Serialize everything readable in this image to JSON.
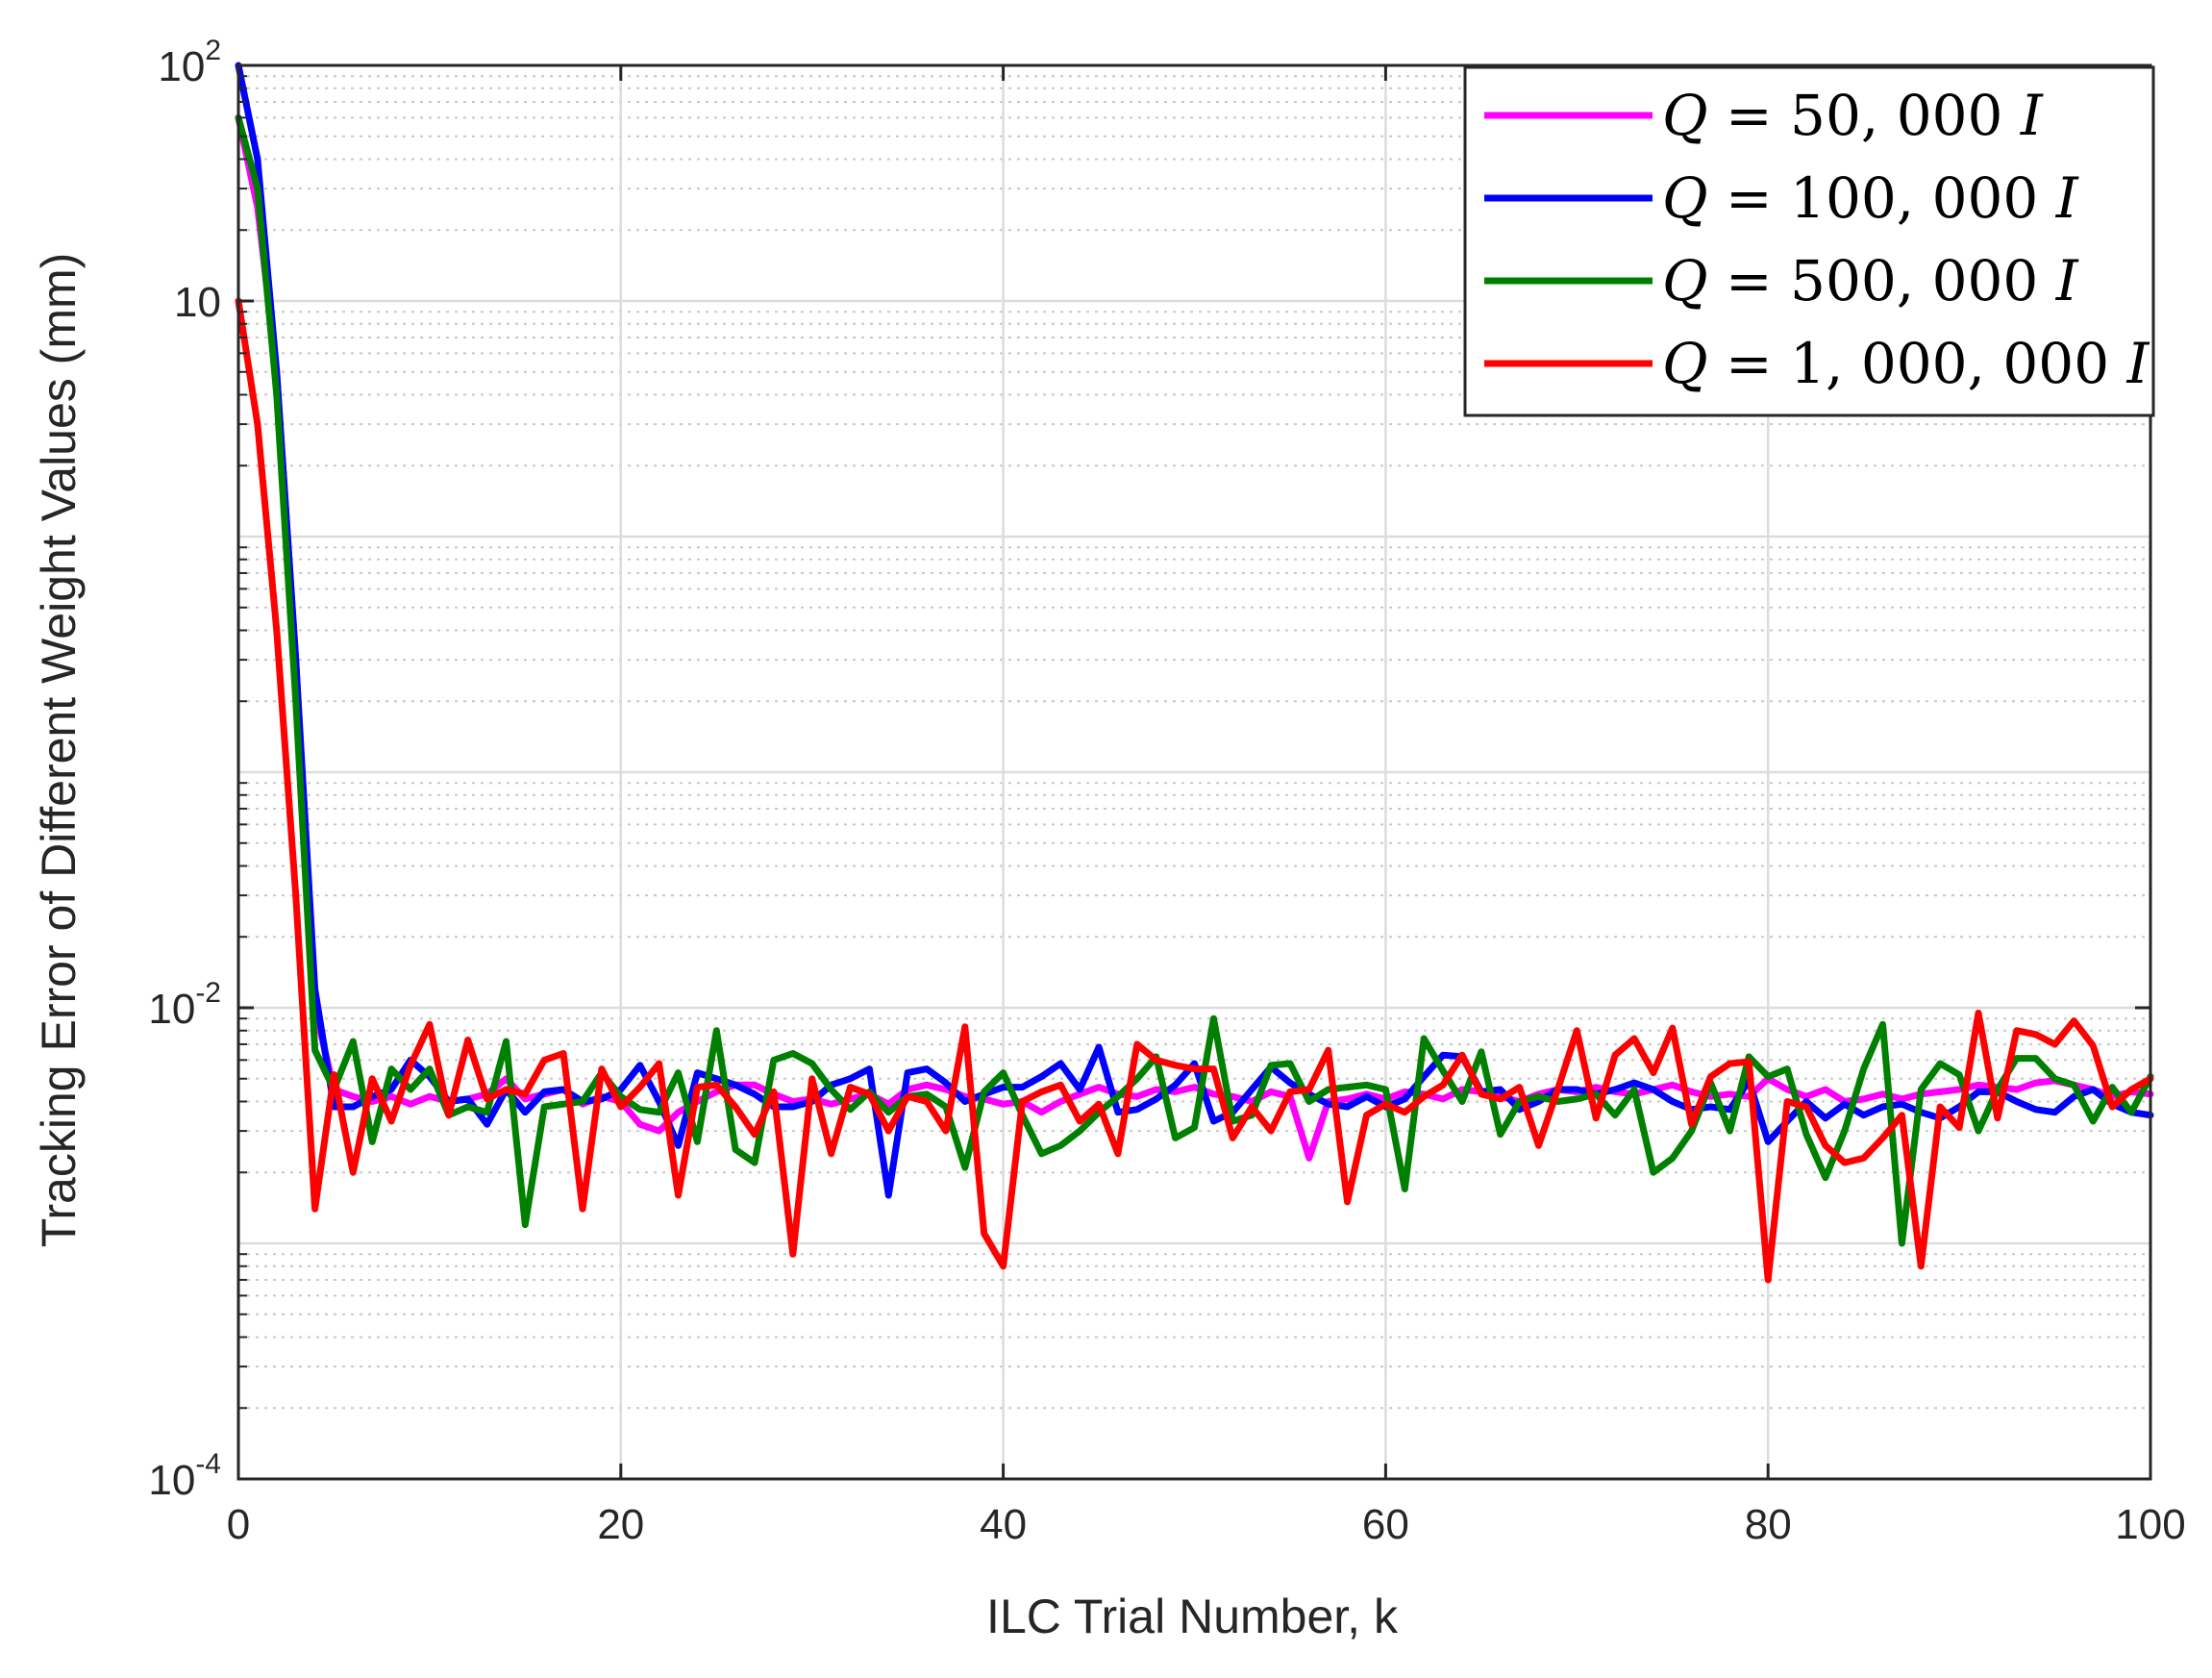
{
  "chart_data": {
    "type": "line",
    "title": "",
    "xlabel": "ILC Trial Number, k",
    "ylabel": "Tracking Error of Different Weight Values (mm)",
    "xlim": [
      0,
      100
    ],
    "ylim": [
      0.0001,
      100
    ],
    "yscale": "log",
    "grid": true,
    "minor_grid": true,
    "legend_position": "top-right",
    "x_ticks": [
      0,
      20,
      40,
      60,
      80,
      100
    ],
    "x_tick_labels": [
      "0",
      "20",
      "40",
      "60",
      "80",
      "100"
    ],
    "y_ticks": [
      0.0001,
      0.01,
      10,
      100
    ],
    "y_tick_labels": [
      {
        "base": "10",
        "exp": "-4"
      },
      {
        "base": "10",
        "exp": "-2"
      },
      {
        "base": "10",
        "exp": ""
      },
      {
        "base": "10",
        "exp": "2"
      }
    ],
    "series": [
      {
        "name": "Q = 50, 000 I",
        "name_parts": {
          "var": "Q",
          "eq": " = ",
          "num": "50, 000 ",
          "mat": "I"
        },
        "color": "#ff00ff",
        "x": [
          0,
          1,
          2,
          3,
          4,
          5,
          6,
          7,
          8,
          9,
          10,
          11,
          12,
          13,
          14,
          15,
          16,
          17,
          18,
          19,
          20,
          21,
          22,
          23,
          24,
          25,
          26,
          27,
          28,
          29,
          30,
          31,
          32,
          33,
          34,
          35,
          36,
          37,
          38,
          39,
          40,
          41,
          42,
          43,
          44,
          45,
          46,
          47,
          48,
          49,
          50,
          51,
          52,
          53,
          54,
          55,
          56,
          57,
          58,
          59,
          60,
          61,
          62,
          63,
          64,
          65,
          66,
          67,
          68,
          69,
          70,
          71,
          72,
          73,
          74,
          75,
          76,
          77,
          78,
          79,
          80,
          81,
          82,
          83,
          84,
          85,
          86,
          87,
          88,
          89,
          90,
          91,
          92,
          93,
          94,
          95,
          96,
          97,
          98,
          99,
          100
        ],
        "y": [
          60,
          25,
          5,
          0.3,
          0.01,
          0.0045,
          0.0042,
          0.004,
          0.0042,
          0.0039,
          0.0042,
          0.004,
          0.0041,
          0.0043,
          0.005,
          0.0041,
          0.0043,
          0.0045,
          0.0039,
          0.0042,
          0.004,
          0.0032,
          0.003,
          0.0036,
          0.004,
          0.0044,
          0.0047,
          0.0047,
          0.0043,
          0.004,
          0.0041,
          0.0039,
          0.0041,
          0.0043,
          0.0039,
          0.0045,
          0.0047,
          0.0045,
          0.0042,
          0.0041,
          0.0039,
          0.004,
          0.0036,
          0.004,
          0.0043,
          0.0046,
          0.0043,
          0.0042,
          0.0045,
          0.0044,
          0.0046,
          0.0043,
          0.0042,
          0.004,
          0.0044,
          0.0042,
          0.0023,
          0.004,
          0.0041,
          0.0043,
          0.0041,
          0.0044,
          0.0043,
          0.0041,
          0.0045,
          0.0044,
          0.0042,
          0.004,
          0.0043,
          0.0045,
          0.0044,
          0.0046,
          0.0044,
          0.0043,
          0.0045,
          0.0047,
          0.0044,
          0.0042,
          0.0043,
          0.0042,
          0.005,
          0.0045,
          0.0042,
          0.0045,
          0.004,
          0.0041,
          0.0043,
          0.0041,
          0.0043,
          0.0044,
          0.0045,
          0.0047,
          0.0046,
          0.0045,
          0.0048,
          0.0049,
          0.0047,
          0.0045,
          0.0042,
          0.0044,
          0.0043
        ]
      },
      {
        "name": "Q = 100, 000 I",
        "name_parts": {
          "var": "Q",
          "eq": " = ",
          "num": "100, 000 ",
          "mat": "I"
        },
        "color": "#0000ff",
        "x": [
          0,
          1,
          2,
          3,
          4,
          5,
          6,
          7,
          8,
          9,
          10,
          11,
          12,
          13,
          14,
          15,
          16,
          17,
          18,
          19,
          20,
          21,
          22,
          23,
          24,
          25,
          26,
          27,
          28,
          29,
          30,
          31,
          32,
          33,
          34,
          35,
          36,
          37,
          38,
          39,
          40,
          41,
          42,
          43,
          44,
          45,
          46,
          47,
          48,
          49,
          50,
          51,
          52,
          53,
          54,
          55,
          56,
          57,
          58,
          59,
          60,
          61,
          62,
          63,
          64,
          65,
          66,
          67,
          68,
          69,
          70,
          71,
          72,
          73,
          74,
          75,
          76,
          77,
          78,
          79,
          80,
          81,
          82,
          83,
          84,
          85,
          86,
          87,
          88,
          89,
          90,
          91,
          92,
          93,
          94,
          95,
          96,
          97,
          98,
          99,
          100
        ],
        "y": [
          100,
          40,
          5,
          0.3,
          0.012,
          0.0038,
          0.0038,
          0.0042,
          0.0045,
          0.006,
          0.0051,
          0.004,
          0.0041,
          0.0032,
          0.0045,
          0.0036,
          0.0044,
          0.0045,
          0.004,
          0.0041,
          0.0045,
          0.0057,
          0.004,
          0.0026,
          0.0053,
          0.005,
          0.0047,
          0.0043,
          0.0038,
          0.0038,
          0.004,
          0.0047,
          0.005,
          0.0055,
          0.0016,
          0.0053,
          0.0055,
          0.0048,
          0.004,
          0.0043,
          0.0046,
          0.0046,
          0.0051,
          0.0058,
          0.0045,
          0.0068,
          0.0036,
          0.0037,
          0.0041,
          0.0047,
          0.0058,
          0.0033,
          0.0036,
          0.0045,
          0.0056,
          0.0048,
          0.0043,
          0.0039,
          0.0038,
          0.0042,
          0.0038,
          0.0041,
          0.0051,
          0.0063,
          0.0062,
          0.0044,
          0.0045,
          0.0037,
          0.004,
          0.0045,
          0.0045,
          0.0043,
          0.0045,
          0.0048,
          0.0045,
          0.004,
          0.0037,
          0.0038,
          0.0037,
          0.0049,
          0.0027,
          0.0033,
          0.004,
          0.0034,
          0.0039,
          0.0035,
          0.0038,
          0.0039,
          0.0036,
          0.0034,
          0.0038,
          0.0044,
          0.0044,
          0.004,
          0.0037,
          0.0036,
          0.0042,
          0.0045,
          0.0039,
          0.0036,
          0.0035
        ]
      },
      {
        "name": "Q = 500, 000 I",
        "name_parts": {
          "var": "Q",
          "eq": " = ",
          "num": "500, 000 ",
          "mat": "I"
        },
        "color": "#008000",
        "x": [
          0,
          1,
          2,
          3,
          4,
          5,
          6,
          7,
          8,
          9,
          10,
          11,
          12,
          13,
          14,
          15,
          16,
          17,
          18,
          19,
          20,
          21,
          22,
          23,
          24,
          25,
          26,
          27,
          28,
          29,
          30,
          31,
          32,
          33,
          34,
          35,
          36,
          37,
          38,
          39,
          40,
          41,
          42,
          43,
          44,
          45,
          46,
          47,
          48,
          49,
          50,
          51,
          52,
          53,
          54,
          55,
          56,
          57,
          58,
          59,
          60,
          61,
          62,
          63,
          64,
          65,
          66,
          67,
          68,
          69,
          70,
          71,
          72,
          73,
          74,
          75,
          76,
          77,
          78,
          79,
          80,
          81,
          82,
          83,
          84,
          85,
          86,
          87,
          88,
          89,
          90,
          91,
          92,
          93,
          94,
          95,
          96,
          97,
          98,
          99,
          100
        ],
        "y": [
          60,
          30,
          4,
          0.2,
          0.0066,
          0.0045,
          0.0072,
          0.0027,
          0.0055,
          0.0045,
          0.0055,
          0.0035,
          0.0038,
          0.0036,
          0.0072,
          0.0012,
          0.0038,
          0.0039,
          0.004,
          0.0053,
          0.0042,
          0.0037,
          0.0036,
          0.0053,
          0.0027,
          0.008,
          0.0025,
          0.0022,
          0.006,
          0.0064,
          0.0058,
          0.0045,
          0.0037,
          0.0044,
          0.0036,
          0.0042,
          0.0043,
          0.0038,
          0.0021,
          0.0044,
          0.0053,
          0.0035,
          0.0024,
          0.0026,
          0.003,
          0.0036,
          0.0042,
          0.005,
          0.0062,
          0.0028,
          0.0031,
          0.009,
          0.0033,
          0.0035,
          0.0057,
          0.0058,
          0.004,
          0.0045,
          0.0046,
          0.0047,
          0.0045,
          0.0017,
          0.0074,
          0.0054,
          0.004,
          0.0065,
          0.0029,
          0.004,
          0.0042,
          0.004,
          0.0041,
          0.0043,
          0.0035,
          0.0045,
          0.002,
          0.0023,
          0.003,
          0.0048,
          0.003,
          0.0062,
          0.0051,
          0.0055,
          0.0029,
          0.0019,
          0.003,
          0.0055,
          0.0085,
          0.001,
          0.0045,
          0.0058,
          0.0052,
          0.003,
          0.0045,
          0.0061,
          0.0061,
          0.005,
          0.0047,
          0.0033,
          0.0046,
          0.0036,
          0.0051
        ]
      },
      {
        "name": "Q = 1, 000, 000 I",
        "name_parts": {
          "var": "Q",
          "eq": " = ",
          "num": "1, 000, 000 ",
          "mat": "I"
        },
        "color": "#ff0000",
        "x": [
          0,
          1,
          2,
          3,
          4,
          5,
          6,
          7,
          8,
          9,
          10,
          11,
          12,
          13,
          14,
          15,
          16,
          17,
          18,
          19,
          20,
          21,
          22,
          23,
          24,
          25,
          26,
          27,
          28,
          29,
          30,
          31,
          32,
          33,
          34,
          35,
          36,
          37,
          38,
          39,
          40,
          41,
          42,
          43,
          44,
          45,
          46,
          47,
          48,
          49,
          50,
          51,
          52,
          53,
          54,
          55,
          56,
          57,
          58,
          59,
          60,
          61,
          62,
          63,
          64,
          65,
          66,
          67,
          68,
          69,
          70,
          71,
          72,
          73,
          74,
          75,
          76,
          77,
          78,
          79,
          80,
          81,
          82,
          83,
          84,
          85,
          86,
          87,
          88,
          89,
          90,
          91,
          92,
          93,
          94,
          95,
          96,
          97,
          98,
          99,
          100
        ],
        "y": [
          10,
          3,
          0.4,
          0.03,
          0.0014,
          0.0052,
          0.002,
          0.005,
          0.0033,
          0.0057,
          0.0085,
          0.0035,
          0.0073,
          0.0041,
          0.0045,
          0.0043,
          0.006,
          0.0064,
          0.0014,
          0.0055,
          0.0038,
          0.0046,
          0.0058,
          0.0016,
          0.0046,
          0.0047,
          0.0038,
          0.0029,
          0.0044,
          0.0009,
          0.005,
          0.0024,
          0.0046,
          0.0043,
          0.003,
          0.0042,
          0.004,
          0.003,
          0.0083,
          0.0011,
          0.0008,
          0.004,
          0.0044,
          0.0047,
          0.0033,
          0.0039,
          0.0024,
          0.007,
          0.006,
          0.0057,
          0.0055,
          0.0055,
          0.0028,
          0.0038,
          0.003,
          0.0044,
          0.0045,
          0.0066,
          0.0015,
          0.0035,
          0.0039,
          0.0036,
          0.0042,
          0.0047,
          0.0063,
          0.0043,
          0.0041,
          0.0046,
          0.0026,
          0.0045,
          0.008,
          0.0034,
          0.0063,
          0.0074,
          0.0053,
          0.0082,
          0.0032,
          0.0051,
          0.0058,
          0.0059,
          0.0007,
          0.004,
          0.0038,
          0.0026,
          0.0022,
          0.0023,
          0.0028,
          0.0035,
          0.0008,
          0.0038,
          0.0031,
          0.0095,
          0.0034,
          0.008,
          0.0077,
          0.007,
          0.0088,
          0.0069,
          0.0038,
          0.0045,
          0.005
        ]
      }
    ]
  }
}
